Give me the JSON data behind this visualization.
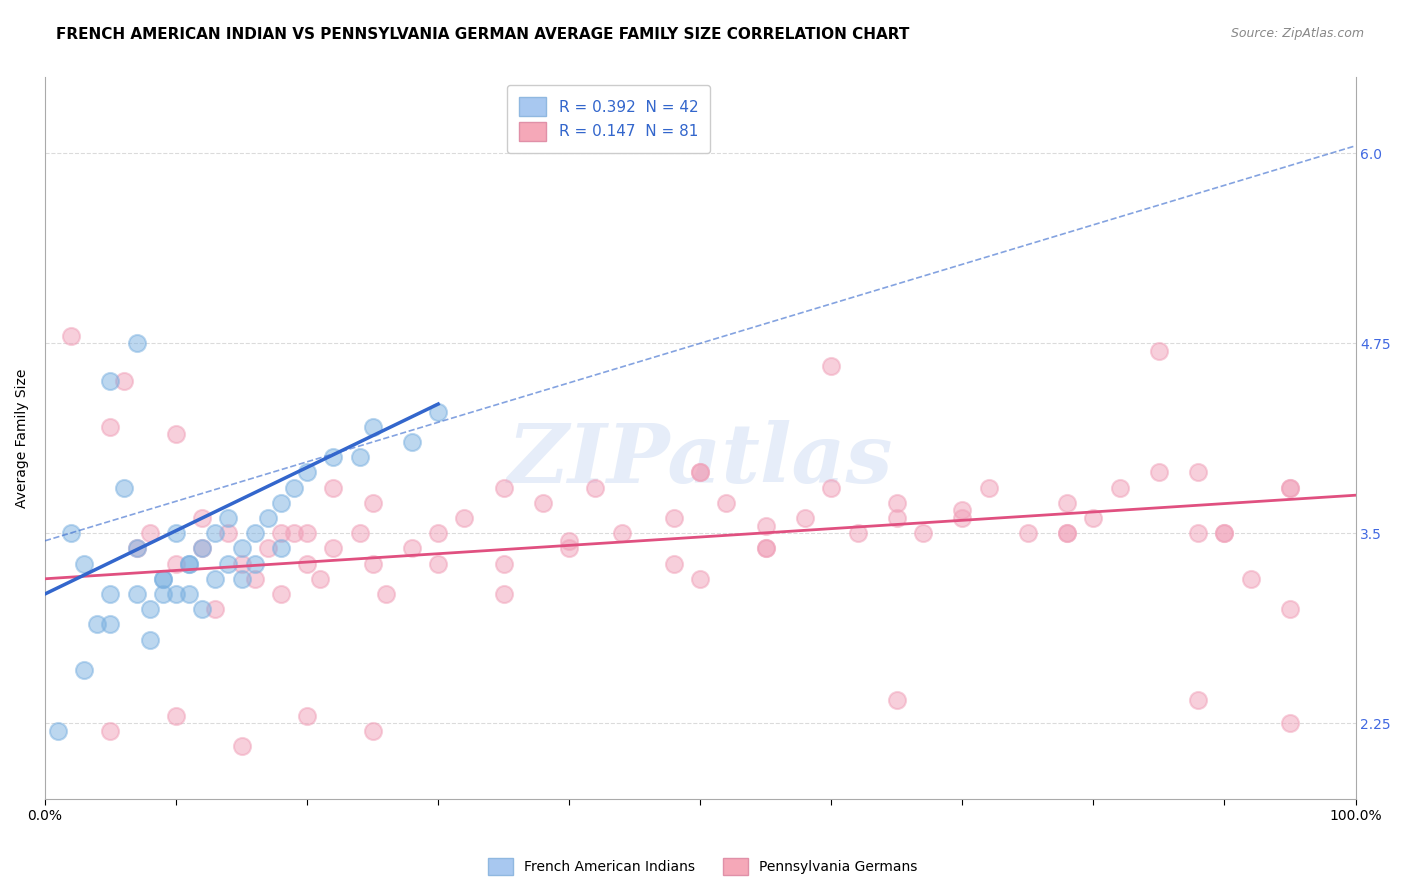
{
  "title": "FRENCH AMERICAN INDIAN VS PENNSYLVANIA GERMAN AVERAGE FAMILY SIZE CORRELATION CHART",
  "source": "Source: ZipAtlas.com",
  "ylabel": "Average Family Size",
  "yticks": [
    2.25,
    3.5,
    4.75,
    6.0
  ],
  "xlim": [
    0.0,
    100.0
  ],
  "ylim": [
    1.75,
    6.5
  ],
  "legend_blue_label": "R = 0.392  N = 42",
  "legend_pink_label": "R = 0.147  N = 81",
  "legend_blue_color": "#a8c8f0",
  "legend_pink_color": "#f5a8b8",
  "blue_color": "#7ab0e0",
  "pink_color": "#f0a0b8",
  "trend_blue_color": "#3366cc",
  "trend_pink_color": "#e05080",
  "watermark": "ZIPatlas",
  "watermark_color": "#c8d8f0",
  "blue_scatter_x": [
    1,
    2,
    3,
    4,
    5,
    5,
    6,
    7,
    7,
    8,
    8,
    9,
    9,
    10,
    10,
    11,
    11,
    12,
    12,
    13,
    13,
    14,
    14,
    15,
    15,
    16,
    16,
    17,
    18,
    18,
    19,
    20,
    22,
    24,
    25,
    28,
    30,
    3,
    5,
    7,
    9,
    11
  ],
  "blue_scatter_y": [
    2.2,
    3.5,
    3.3,
    2.9,
    4.5,
    3.1,
    3.8,
    3.4,
    4.75,
    3.0,
    2.8,
    3.2,
    3.1,
    3.5,
    3.1,
    3.3,
    3.1,
    3.4,
    3.0,
    3.5,
    3.2,
    3.6,
    3.3,
    3.4,
    3.2,
    3.5,
    3.3,
    3.6,
    3.7,
    3.4,
    3.8,
    3.9,
    4.0,
    4.0,
    4.2,
    4.1,
    4.3,
    2.6,
    2.9,
    3.1,
    3.2,
    3.3
  ],
  "pink_scatter_x": [
    2,
    5,
    6,
    8,
    10,
    10,
    12,
    13,
    14,
    15,
    16,
    17,
    18,
    19,
    20,
    21,
    22,
    22,
    24,
    25,
    26,
    28,
    30,
    32,
    35,
    38,
    40,
    42,
    44,
    48,
    50,
    52,
    55,
    58,
    60,
    62,
    65,
    67,
    70,
    72,
    75,
    78,
    80,
    82,
    85,
    88,
    90,
    92,
    95,
    5,
    10,
    15,
    20,
    25,
    55,
    65,
    78,
    88,
    95,
    7,
    12,
    18,
    25,
    35,
    50,
    65,
    78,
    88,
    95,
    50,
    60,
    20,
    30,
    40,
    55,
    70,
    85,
    90,
    95,
    35,
    48
  ],
  "pink_scatter_y": [
    4.8,
    4.2,
    4.5,
    3.5,
    3.3,
    4.15,
    3.4,
    3.0,
    3.5,
    3.3,
    3.2,
    3.4,
    3.1,
    3.5,
    3.3,
    3.2,
    3.4,
    3.8,
    3.5,
    3.3,
    3.1,
    3.4,
    3.5,
    3.6,
    3.3,
    3.7,
    3.4,
    3.8,
    3.5,
    3.6,
    3.9,
    3.7,
    3.4,
    3.6,
    3.8,
    3.5,
    3.7,
    3.5,
    3.6,
    3.8,
    3.5,
    3.7,
    3.6,
    3.8,
    3.9,
    2.4,
    3.5,
    3.2,
    3.0,
    2.2,
    2.3,
    2.1,
    2.3,
    2.2,
    3.4,
    2.4,
    3.5,
    3.5,
    3.8,
    3.4,
    3.6,
    3.5,
    3.7,
    3.8,
    3.9,
    3.6,
    3.5,
    3.9,
    3.8,
    3.2,
    4.6,
    3.5,
    3.3,
    3.45,
    3.55,
    3.65,
    4.7,
    3.5,
    2.25,
    3.1,
    3.3
  ],
  "blue_trend_x0": 0,
  "blue_trend_x1": 30,
  "blue_trend_y0": 3.1,
  "blue_trend_y1": 4.35,
  "pink_trend_x0": 0,
  "pink_trend_x1": 100,
  "pink_trend_y0": 3.2,
  "pink_trend_y1": 3.75,
  "conf_upper_x0": 0,
  "conf_upper_x1": 100,
  "conf_upper_y0": 3.45,
  "conf_upper_y1": 6.05,
  "background_color": "#ffffff",
  "grid_color": "#cccccc",
  "title_fontsize": 11,
  "axis_label_fontsize": 10,
  "tick_fontsize": 10,
  "legend_fontsize": 11,
  "right_tick_color": "#4169e1"
}
